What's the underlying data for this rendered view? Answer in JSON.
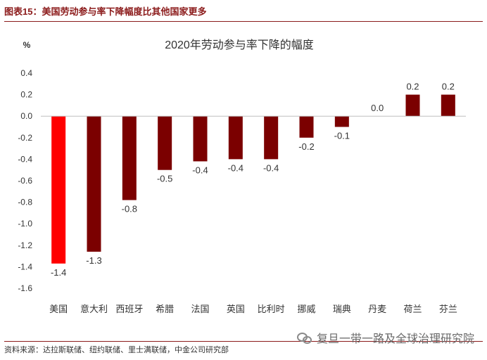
{
  "figure_label": "图表15：美国劳动参与率下降幅度比其他国家更多",
  "source": "资料来源：达拉斯联储、纽约联储、里士满联储，中金公司研究部",
  "watermark": "复旦一带一路及全球治理研究院",
  "colors": {
    "highlight": "#ff0000",
    "bar": "#7b0000",
    "header": "#8b1a1a"
  },
  "chart_data": {
    "type": "bar",
    "title": "2020年劳动参与率下降的幅度",
    "ylabel": "%",
    "xlabel": "",
    "categories": [
      "美国",
      "意大利",
      "西班牙",
      "希腊",
      "法国",
      "英国",
      "比利时",
      "挪威",
      "瑞典",
      "丹麦",
      "荷兰",
      "芬兰"
    ],
    "values": [
      -1.37,
      -1.26,
      -0.78,
      -0.5,
      -0.42,
      -0.4,
      -0.4,
      -0.2,
      -0.1,
      0.0,
      0.2,
      0.2
    ],
    "data_labels": [
      "-1.4",
      "-1.3",
      "-0.8",
      "-0.5",
      "-0.4",
      "-0.4",
      "-0.4",
      "-0.2",
      "-0.1",
      "0.0",
      "0.2",
      "0.2"
    ],
    "ylim": [
      -1.6,
      0.4
    ],
    "yticks": [
      0.4,
      0.2,
      0.0,
      -0.2,
      -0.4,
      -0.6,
      -0.8,
      -1.0,
      -1.2,
      -1.4,
      -1.6
    ],
    "ytick_labels": [
      "0.4",
      "0.2",
      "0.0",
      "-0.2",
      "-0.4",
      "-0.6",
      "-0.8",
      "-1.0",
      "-1.2",
      "-1.4",
      "-1.6"
    ],
    "grid": false,
    "legend": "none"
  }
}
